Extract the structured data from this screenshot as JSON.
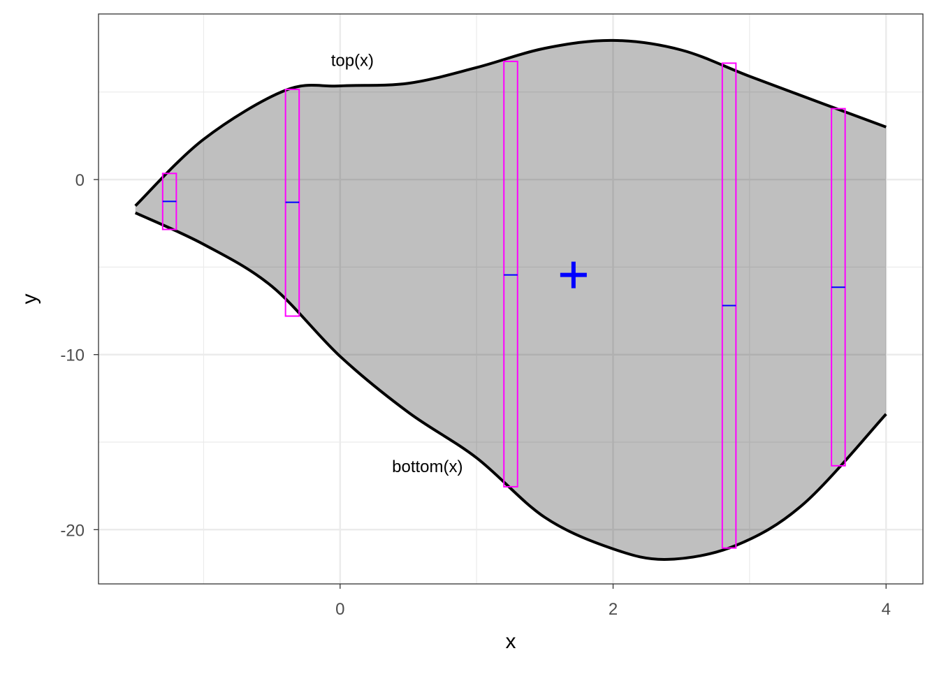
{
  "chart_data": {
    "type": "area",
    "title": "",
    "xlabel": "x",
    "ylabel": "y",
    "xlim": [
      -1.77,
      4.27
    ],
    "ylim": [
      -23.1,
      9.46
    ],
    "x_ticks": [
      0,
      2,
      4
    ],
    "x_tick_labels": [
      "0",
      "2",
      "4"
    ],
    "y_ticks": [
      0,
      -10,
      -20
    ],
    "y_tick_labels": [
      "0",
      "-10",
      "-20"
    ],
    "grid": true,
    "colors": {
      "fill": "#bebebe",
      "curve": "#000000",
      "rect": "#ff00ff",
      "mid": "#0000ff",
      "plus": "#0000ff"
    },
    "top_curve": {
      "label": "top(x)",
      "label_x": 0.09,
      "label_y": 6.8,
      "x": [
        -1.5,
        -1,
        -0.4,
        0,
        0.5,
        1,
        1.5,
        2,
        2.5,
        3,
        3.55,
        4
      ],
      "y": [
        -1.5,
        2.3,
        5.1,
        5.35,
        5.5,
        6.4,
        7.5,
        7.95,
        7.4,
        5.9,
        4.3,
        3.0
      ]
    },
    "bottom_curve": {
      "label": "bottom(x)",
      "label_x": 0.64,
      "label_y": -16.4,
      "x": [
        -1.5,
        -1,
        -0.5,
        0,
        0.5,
        1,
        1.5,
        2,
        2.4,
        2.9,
        3.4,
        4
      ],
      "y": [
        -1.9,
        -3.7,
        -6.1,
        -10.1,
        -13.3,
        -15.9,
        -19.3,
        -21.1,
        -21.7,
        -20.9,
        -18.5,
        -13.4
      ]
    },
    "rectangles": [
      {
        "x": -1.25,
        "ymin": -2.85,
        "ymax": 0.35,
        "ymid": -1.25
      },
      {
        "x": -0.35,
        "ymin": -7.8,
        "ymax": 5.15,
        "ymid": -1.3
      },
      {
        "x": 1.25,
        "ymin": -17.55,
        "ymax": 6.75,
        "ymid": -5.45
      },
      {
        "x": 2.85,
        "ymin": -21.05,
        "ymax": 6.65,
        "ymid": -7.2
      },
      {
        "x": 3.65,
        "ymin": -16.35,
        "ymax": 4.05,
        "ymid": -6.15
      }
    ],
    "rect_width": 0.1,
    "plus_point": {
      "x": 1.71,
      "y": -5.45
    }
  }
}
